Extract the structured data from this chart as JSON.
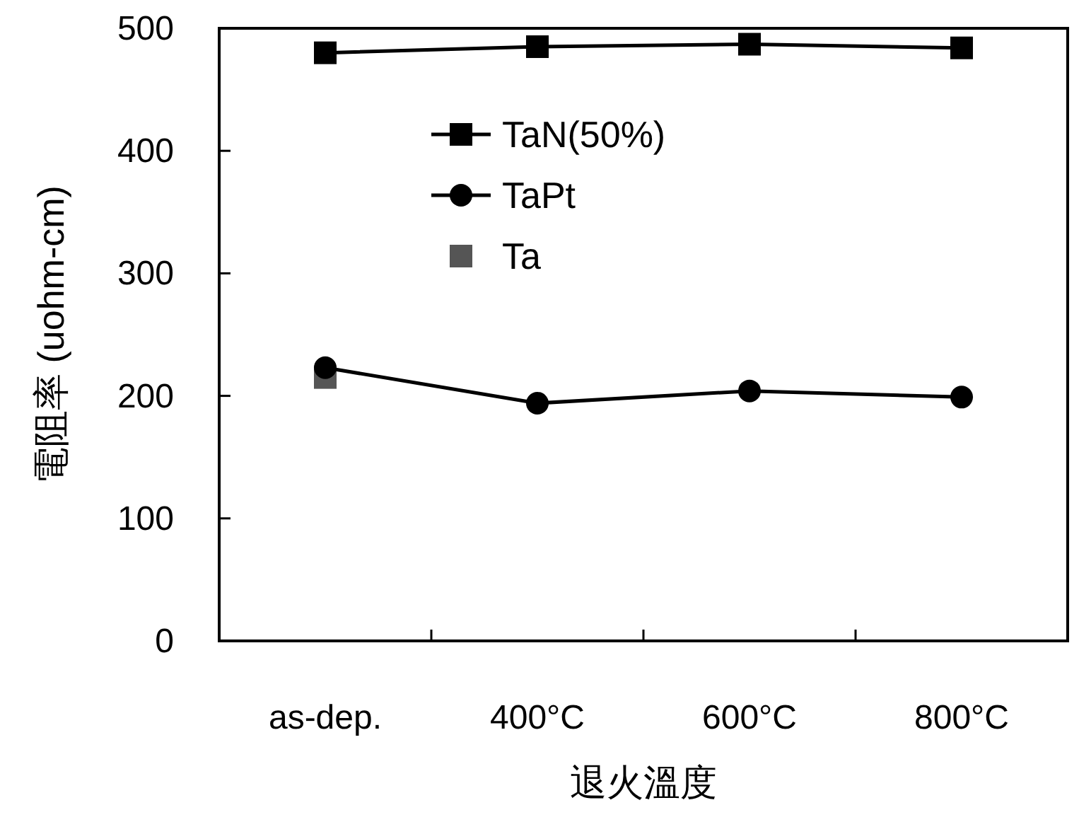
{
  "chart_data": {
    "type": "line",
    "xlabel": "退火溫度",
    "ylabel": "電阻率 (uohm-cm)",
    "categories": [
      "as-dep.",
      "400°C",
      "600°C",
      "800°C"
    ],
    "series": [
      {
        "name": "TaN(50%)",
        "color": "#000000",
        "marker": "square",
        "line_style": "solid",
        "values": [
          480,
          485,
          487,
          484
        ]
      },
      {
        "name": "TaPt",
        "color": "#000000",
        "marker": "circle",
        "line_style": "solid",
        "values": [
          223,
          194,
          204,
          199
        ]
      },
      {
        "name": "Ta",
        "type": "scatter",
        "color": "#555555",
        "marker": "square",
        "values": [
          215,
          null,
          null,
          null
        ]
      }
    ],
    "ylim": [
      0,
      500
    ],
    "yticks": [
      0,
      100,
      200,
      300,
      400,
      500
    ],
    "grid": false,
    "legend": "top left"
  }
}
